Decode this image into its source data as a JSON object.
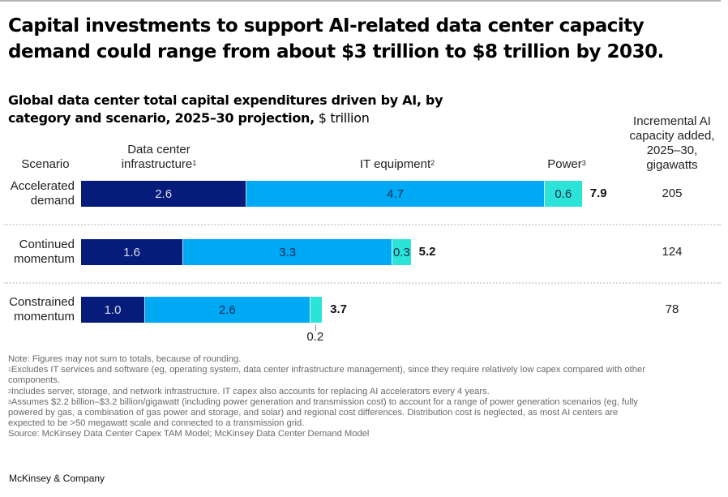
{
  "headline": "Capital investments to support AI-related data center capacity demand could range from about $3 trillion to $8 trillion by 2030.",
  "subtitle": {
    "bold": "Global data center total capital expenditures driven by AI, by category and scenario, 2025–30 projection,",
    "unit": " $ trillion"
  },
  "columns": {
    "scenario": "Scenario",
    "infra": "Data center infrastructure",
    "infra_line1": "Data center",
    "infra_line2": "infrastructure",
    "infra_sup": "1",
    "it": "IT equipment",
    "it_sup": "2",
    "power": "Power",
    "power_sup": "3",
    "gw_line1": "Incremental AI",
    "gw_line2": "capacity added,",
    "gw_line3": "2025–30,",
    "gw_line4": "gigawatts"
  },
  "chart_data": {
    "type": "bar",
    "orientation": "horizontal-stacked",
    "title": "Global data center total capital expenditures driven by AI, by category and scenario, 2025–30 projection, $ trillion",
    "xlabel": "",
    "ylabel": "Scenario",
    "categories": [
      "Accelerated demand",
      "Continued momentum",
      "Constrained momentum"
    ],
    "category_lines": [
      [
        "Accelerated",
        "demand"
      ],
      [
        "Continued",
        "momentum"
      ],
      [
        "Constrained",
        "momentum"
      ]
    ],
    "series": [
      {
        "name": "Data center infrastructure",
        "color": "#051c7a",
        "values": [
          2.6,
          1.6,
          1.0
        ]
      },
      {
        "name": "IT equipment",
        "color": "#00a9f4",
        "values": [
          4.7,
          3.3,
          2.6
        ]
      },
      {
        "name": "Power",
        "color": "#2be3d7",
        "values": [
          0.6,
          0.3,
          0.2
        ]
      }
    ],
    "value_labels": [
      [
        "2.6",
        "4.7",
        "0.6"
      ],
      [
        "1.6",
        "3.3",
        "0.3"
      ],
      [
        "1.0",
        "2.6",
        "0.2"
      ]
    ],
    "totals": [
      7.9,
      5.2,
      3.7
    ],
    "total_labels": [
      "7.9",
      "5.2",
      "3.7"
    ],
    "incremental_capacity_gw": [
      205,
      124,
      78
    ],
    "incremental_capacity_labels": [
      "205",
      "124",
      "78"
    ],
    "xlim": [
      0,
      7.9
    ],
    "grid": false,
    "legend": "column headers above bars"
  },
  "notes": {
    "note": "Note: Figures may not sum to totals, because of rounding.",
    "fn1_sup": "1",
    "fn1_a": "Excludes IT services and software (eg, operating system, data center infrastructure management), since they require relatively low capex compared with other",
    "fn1_b": "components.",
    "fn2_sup": "2",
    "fn2": "Includes server, storage, and network infrastructure. IT capex also accounts for replacing AI accelerators every 4 years.",
    "fn3_sup": "3",
    "fn3_a": "Assumes $2.2 billion–$3.2 billion/gigawatt (including power generation and transmission cost) to account for a range of power generation scenarios (eg, fully",
    "fn3_b": "powered by gas, a combination of gas power and storage, and solar) and regional cost differences. Distribution cost is neglected, as most AI centers are",
    "fn3_c": "expected to be >50 megawatt scale and connected to a transmission grid.",
    "source": "Source: McKinsey Data Center Capex TAM Model; McKinsey Data Center Demand Model"
  },
  "brand": "McKinsey & Company"
}
